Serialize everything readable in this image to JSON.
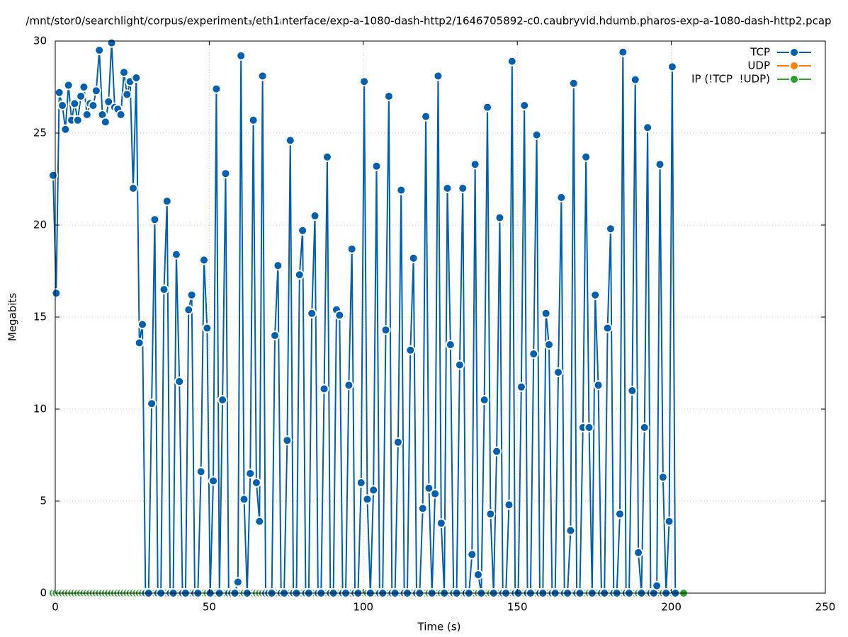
{
  "chart_data": {
    "type": "line",
    "title": "/mnt/stor0/searchlight/corpus/experiment₃/eth1ᵢnterface/exp-a-1080-dash-http2/1646705892-c0.caubryvid.hdumb.pharos-exp-a-1080-dash-http2.pcap",
    "xlabel": "Time (s)",
    "ylabel": "Megabits",
    "xlim": [
      0,
      250
    ],
    "xticks": [
      0,
      50,
      100,
      150,
      200,
      250
    ],
    "ylim": [
      0,
      30
    ],
    "yticks": [
      0,
      5,
      10,
      15,
      20,
      25,
      30
    ],
    "grid": true,
    "legend": "top-right",
    "x": [
      -0.7,
      0.3,
      1.3,
      2.3,
      3.3,
      4.3,
      5.3,
      6.3,
      7.3,
      8.3,
      9.3,
      10.3,
      11.3,
      12.3,
      13.3,
      14.3,
      15.3,
      16.3,
      17.3,
      18.3,
      19.3,
      20.3,
      21.3,
      22.3,
      23.3,
      24.3,
      25.3,
      26.3,
      27.3,
      28.3,
      29.3,
      30.3,
      31.3,
      32.3,
      33.3,
      34.3,
      35.3,
      36.3,
      37.3,
      38.3,
      39.3,
      40.3,
      41.3,
      42.3,
      43.3,
      44.3,
      45.3,
      46.3,
      47.3,
      48.3,
      49.3,
      50.3,
      51.3,
      52.3,
      53.3,
      54.3,
      55.3,
      56.3,
      57.3,
      58.3,
      59.3,
      60.3,
      61.3,
      62.3,
      63.3,
      64.3,
      65.3,
      66.3,
      67.3,
      68.3,
      69.3,
      70.3,
      71.3,
      72.3,
      73.3,
      74.3,
      75.3,
      76.3,
      77.3,
      78.3,
      79.3,
      80.3,
      81.3,
      82.3,
      83.3,
      84.3,
      85.3,
      86.3,
      87.3,
      88.3,
      89.3,
      90.3,
      91.3,
      92.3,
      93.3,
      94.3,
      95.3,
      96.3,
      97.3,
      98.3,
      99.3,
      100.3,
      101.3,
      102.3,
      103.3,
      104.3,
      105.3,
      106.3,
      107.3,
      108.3,
      109.3,
      110.3,
      111.3,
      112.3,
      113.3,
      114.3,
      115.3,
      116.3,
      117.3,
      118.3,
      119.3,
      120.3,
      121.3,
      122.3,
      123.3,
      124.3,
      125.3,
      126.3,
      127.3,
      128.3,
      129.3,
      130.3,
      131.3,
      132.3,
      133.3,
      134.3,
      135.3,
      136.3,
      137.3,
      138.3,
      139.3,
      140.3,
      141.3,
      142.3,
      143.3,
      144.3,
      145.3,
      146.3,
      147.3,
      148.3,
      149.3,
      150.3,
      151.3,
      152.3,
      153.3,
      154.3,
      155.3,
      156.3,
      157.3,
      158.3,
      159.3,
      160.3,
      161.3,
      162.3,
      163.3,
      164.3,
      165.3,
      166.3,
      167.3,
      168.3,
      169.3,
      170.3,
      171.3,
      172.3,
      173.3,
      174.3,
      175.3,
      176.3,
      177.3,
      178.3,
      179.3,
      180.3,
      181.3,
      182.3,
      183.3,
      184.3,
      185.3,
      186.3,
      187.3,
      188.3,
      189.3,
      190.3,
      191.3,
      192.3,
      193.3,
      194.3,
      195.3,
      196.3,
      197.3,
      198.3,
      199.3,
      200.3,
      201.3,
      204
    ],
    "series": [
      {
        "name": "TCP",
        "color": "#0060ad",
        "values": [
          22.7,
          16.3,
          27.2,
          26.5,
          25.2,
          27.6,
          25.7,
          26.6,
          25.7,
          27.0,
          27.5,
          26.0,
          26.6,
          26.5,
          27.3,
          29.5,
          26.0,
          25.6,
          26.7,
          29.9,
          26.4,
          26.3,
          26.0,
          28.3,
          27.1,
          27.8,
          22.0,
          28.0,
          13.6,
          14.6,
          0,
          0,
          10.3,
          20.3,
          0,
          0,
          16.5,
          21.3,
          0,
          0,
          18.4,
          11.5,
          0,
          0,
          15.4,
          16.2,
          0,
          0,
          6.6,
          18.1,
          14.4,
          0,
          6.1,
          27.4,
          0,
          10.5,
          22.8,
          0,
          0,
          0,
          0.6,
          29.2,
          5.1,
          0,
          6.5,
          25.7,
          6.0,
          3.9,
          28.1,
          0,
          0,
          0,
          14.0,
          17.8,
          0,
          0,
          8.3,
          24.6,
          0,
          0,
          17.3,
          19.7,
          0,
          0,
          15.2,
          20.5,
          0,
          0,
          11.1,
          23.7,
          0,
          0,
          15.4,
          15.1,
          0,
          0,
          11.3,
          18.7,
          0,
          0,
          6.0,
          27.8,
          5.1,
          0,
          5.6,
          23.2,
          0,
          0,
          14.3,
          27.0,
          0,
          0,
          8.2,
          21.9,
          0,
          0,
          13.2,
          18.2,
          0,
          0,
          4.6,
          25.9,
          5.7,
          0,
          5.4,
          28.1,
          3.8,
          0,
          22.0,
          13.5,
          0,
          0,
          12.4,
          22.0,
          0,
          0,
          2.1,
          23.3,
          1.0,
          0,
          10.5,
          26.4,
          4.3,
          0,
          7.7,
          20.4,
          0,
          0,
          4.8,
          28.9,
          0,
          0,
          11.2,
          26.5,
          0,
          0,
          13.0,
          24.9,
          0,
          0,
          15.2,
          13.5,
          0,
          0,
          12.0,
          21.5,
          0,
          0,
          3.4,
          27.7,
          0,
          0,
          9.0,
          23.7,
          9.0,
          0,
          16.2,
          11.3,
          0,
          0,
          14.4,
          19.8,
          0,
          0,
          4.3,
          29.4,
          0,
          0,
          11.0,
          27.9,
          2.2,
          0,
          9.0,
          25.3,
          0,
          0,
          0.4,
          23.3,
          6.3,
          0,
          3.9,
          28.6,
          0,
          null
        ]
      },
      {
        "name": "UDP",
        "color": "#ff7f0e",
        "values": [
          null,
          null,
          null,
          null,
          null,
          null,
          null,
          null,
          null,
          null,
          null,
          null,
          null,
          null,
          null,
          null,
          null,
          null,
          null,
          null,
          null,
          null,
          null,
          null,
          null,
          null,
          null,
          null,
          null,
          null,
          null,
          null,
          null,
          null,
          null,
          null,
          null,
          null,
          null,
          null,
          null,
          null,
          null,
          null,
          null,
          null,
          null,
          null,
          null,
          null,
          null,
          null,
          null,
          null,
          null,
          null,
          null,
          null,
          null,
          null,
          null,
          null,
          null,
          null,
          null,
          null,
          null,
          null,
          null,
          null,
          null,
          null,
          null,
          null,
          null,
          null,
          null,
          null,
          null,
          null,
          null,
          null,
          null,
          null,
          null,
          null,
          null,
          null,
          null,
          null,
          null,
          null,
          null,
          null,
          null,
          null,
          null,
          null,
          null,
          null,
          null,
          null,
          null,
          null,
          null,
          null,
          null,
          null,
          null,
          null,
          null,
          null,
          null,
          null,
          null,
          null,
          null,
          null,
          null,
          null,
          null,
          null,
          null,
          null,
          null,
          null,
          null,
          null,
          null,
          null,
          null,
          null,
          null,
          null,
          null,
          null,
          null,
          null,
          null,
          null,
          null,
          null,
          null,
          null,
          null,
          null,
          null,
          null,
          null,
          null,
          null,
          null,
          null,
          null,
          null,
          null,
          null,
          null,
          null,
          null,
          null,
          null,
          null,
          null,
          null,
          null,
          null,
          null,
          null,
          null,
          null,
          null,
          null,
          null,
          null,
          null,
          null,
          null,
          null,
          null,
          null,
          null,
          null,
          null,
          null,
          null,
          null,
          null,
          null,
          null,
          null,
          null,
          null,
          null,
          null,
          null,
          null,
          null,
          null,
          null,
          null,
          null,
          null,
          null
        ]
      },
      {
        "name": "IP (!TCP  !UDP)",
        "color": "#2ca02c",
        "values": [
          0,
          0,
          0,
          0,
          0,
          0,
          0,
          0,
          0,
          0,
          0,
          0,
          0,
          0,
          0,
          0,
          0,
          0,
          0,
          0,
          0,
          0,
          0,
          0,
          0,
          0,
          0,
          0,
          0,
          0,
          0,
          0,
          0,
          0,
          0,
          0,
          0,
          0,
          0,
          0,
          0,
          0,
          0,
          0,
          0,
          0,
          0,
          0,
          0,
          0,
          0,
          0,
          0,
          0,
          0,
          0,
          0,
          0,
          0,
          0,
          0,
          0,
          0,
          0,
          0,
          0,
          0,
          0,
          0,
          0,
          0,
          0,
          0,
          0,
          0,
          0,
          0,
          0,
          0,
          0,
          0,
          0,
          0,
          0,
          0,
          0,
          0,
          0,
          0,
          0,
          0,
          0,
          0,
          0,
          0,
          0,
          0,
          0,
          0,
          0,
          0,
          0,
          0,
          0,
          0,
          0,
          0,
          0,
          0,
          0,
          0,
          0,
          0,
          0,
          0,
          0,
          0,
          0,
          0,
          0,
          0,
          0,
          0,
          0,
          0,
          0,
          0,
          0,
          0,
          0,
          0,
          0,
          0,
          0,
          0,
          0,
          0,
          0,
          0,
          0,
          0,
          0,
          0,
          0,
          0,
          0,
          0,
          0,
          0,
          0,
          0,
          0,
          0,
          0,
          0,
          0,
          0,
          0,
          0,
          0,
          0,
          0,
          0,
          0,
          0,
          0,
          0,
          0,
          0,
          0,
          0,
          0,
          0,
          0,
          0,
          0,
          0,
          0,
          0,
          0,
          0,
          0,
          0,
          0,
          0,
          0,
          0,
          0,
          0,
          0,
          0,
          0,
          0,
          0,
          0,
          0,
          0,
          0,
          0,
          0,
          0,
          0,
          0,
          0
        ]
      }
    ]
  }
}
